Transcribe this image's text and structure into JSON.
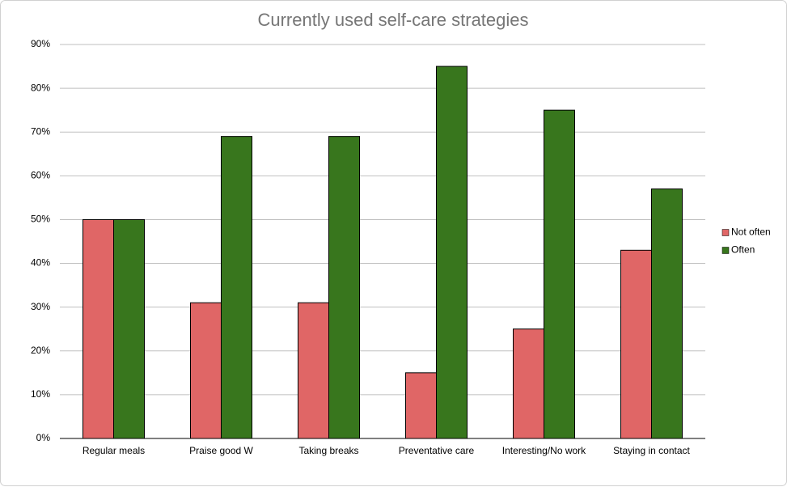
{
  "chart_data": {
    "type": "bar",
    "title": "Currently used self-care strategies",
    "categories": [
      "Regular meals",
      "Praise good W",
      "Taking breaks",
      "Preventative care",
      "Interesting/No work",
      "Staying in contact"
    ],
    "series": [
      {
        "name": "Not often",
        "color": "#e06666",
        "values": [
          50,
          31,
          31,
          15,
          25,
          43
        ]
      },
      {
        "name": "Often",
        "color": "#38761d",
        "values": [
          50,
          69,
          69,
          85,
          75,
          57
        ]
      }
    ],
    "ylim": [
      0,
      90
    ],
    "yticks": [
      {
        "value": 0,
        "label": "0%"
      },
      {
        "value": 10,
        "label": "10%"
      },
      {
        "value": 20,
        "label": "20%"
      },
      {
        "value": 30,
        "label": "30%"
      },
      {
        "value": 40,
        "label": "40%"
      },
      {
        "value": 50,
        "label": "50%"
      },
      {
        "value": 60,
        "label": "60%"
      },
      {
        "value": 70,
        "label": "70%"
      },
      {
        "value": 80,
        "label": "80%"
      },
      {
        "value": 90,
        "label": "90%"
      }
    ],
    "grid": true,
    "legend": "right"
  }
}
